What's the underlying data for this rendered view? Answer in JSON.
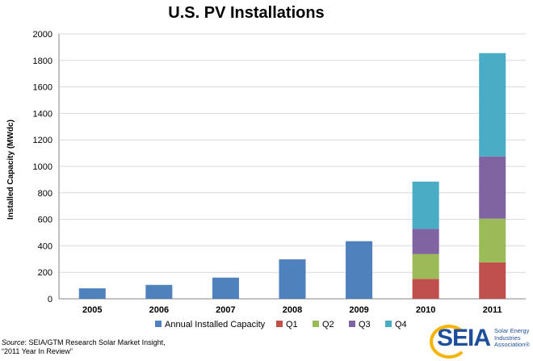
{
  "chart_data": {
    "type": "bar",
    "stacked": true,
    "title": "U.S. PV Installations",
    "ylabel": "Installed Capacity (MWdc)",
    "xlabel": "",
    "ylim": [
      0,
      2000
    ],
    "yticks": [
      0,
      200,
      400,
      600,
      800,
      1000,
      1200,
      1400,
      1600,
      1800,
      2000
    ],
    "grid": true,
    "legend_position": "bottom",
    "categories": [
      "2005",
      "2006",
      "2007",
      "2008",
      "2009",
      "2010",
      "2011"
    ],
    "series": [
      {
        "name": "Annual Installed Capacity",
        "color": "#4f81bd",
        "values": [
          79,
          105,
          160,
          298,
          435,
          null,
          null
        ]
      },
      {
        "name": "Q1",
        "color": "#c0504d",
        "values": [
          null,
          null,
          null,
          null,
          null,
          151,
          275
        ]
      },
      {
        "name": "Q2",
        "color": "#9bbb59",
        "values": [
          null,
          null,
          null,
          null,
          null,
          187,
          330
        ]
      },
      {
        "name": "Q3",
        "color": "#8064a2",
        "values": [
          null,
          null,
          null,
          null,
          null,
          190,
          470
        ]
      },
      {
        "name": "Q4",
        "color": "#4bacc6",
        "values": [
          null,
          null,
          null,
          null,
          null,
          357,
          780
        ]
      }
    ]
  },
  "source": {
    "label": "Source",
    "text": ": SEIA/GTM Research Solar Market Insight,",
    "line2": "“2011 Year In Review”"
  },
  "logo": {
    "word": "SEIA",
    "sub_line1": "Solar Energy",
    "sub_line2": "Industries",
    "sub_line3": "Association®"
  }
}
